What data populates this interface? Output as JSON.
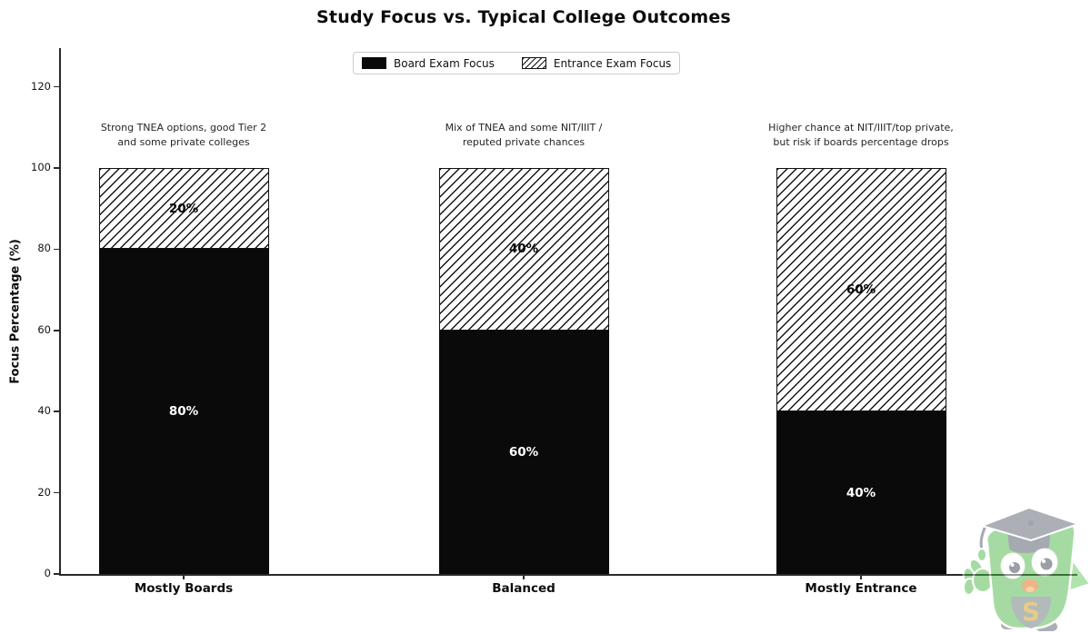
{
  "watermark": {
    "letter": "S",
    "body_color": "#4db848",
    "cap_color": "#5b6270",
    "letter_color": "#cf9a10"
  },
  "chart_data": {
    "type": "bar",
    "stacked": true,
    "title": "Study Focus vs. Typical College Outcomes",
    "ylabel": "Focus Percentage (%)",
    "xlabel": "",
    "ylim": [
      0,
      130
    ],
    "yticks": [
      0,
      20,
      40,
      60,
      80,
      100,
      120
    ],
    "grid": false,
    "categories": [
      "Mostly Boards",
      "Balanced",
      "Mostly Entrance"
    ],
    "series": [
      {
        "name": "Board Exam Focus",
        "values": [
          80,
          60,
          40
        ],
        "value_labels": [
          "80%",
          "60%",
          "40%"
        ],
        "fill": "solid-black"
      },
      {
        "name": "Entrance Exam Focus",
        "values": [
          20,
          40,
          60
        ],
        "value_labels": [
          "20%",
          "40%",
          "60%"
        ],
        "fill": "white-diagonal-hatch"
      }
    ],
    "annotations": [
      {
        "category": "Mostly Boards",
        "lines": [
          "Strong TNEA options, good Tier 2",
          "and some private colleges"
        ]
      },
      {
        "category": "Balanced",
        "lines": [
          "Mix of TNEA and some NIT/IIIT /",
          "reputed private chances"
        ]
      },
      {
        "category": "Mostly Entrance",
        "lines": [
          "Higher chance at NIT/IIIT/top private,",
          "but risk if boards percentage drops"
        ]
      }
    ],
    "legend": {
      "position": "upper center",
      "items": [
        "Board Exam Focus",
        "Entrance Exam Focus"
      ]
    },
    "colors": {
      "bar_solid": "#0a0a0a",
      "hatch_line": "#151515",
      "axis": "#2a2a2a",
      "annotation_text": "#262626"
    }
  }
}
